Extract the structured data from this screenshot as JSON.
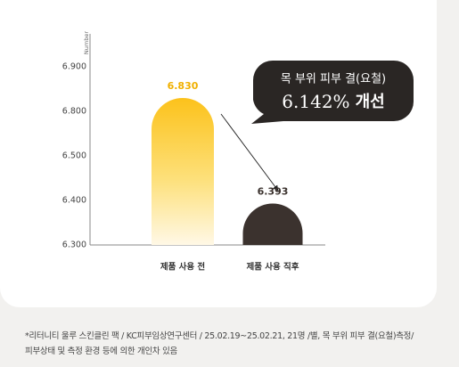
{
  "chart_data": {
    "type": "bar",
    "y_label": "Number",
    "categories": [
      "제품 사용 전",
      "제품 사용 직후"
    ],
    "values": [
      6.83,
      6.393
    ],
    "value_labels": [
      "6.830",
      "6.393"
    ],
    "colors": [
      "#fcc21b",
      "#3b322e"
    ],
    "ylim": [
      6.3,
      6.9
    ],
    "yticks": [
      {
        "value": 6.3,
        "label": "6.300"
      },
      {
        "value": 6.4,
        "label": "6.400"
      },
      {
        "value": 6.5,
        "label": "6.500"
      },
      {
        "value": 6.8,
        "label": "6.800"
      },
      {
        "value": 6.9,
        "label": "6.900"
      }
    ],
    "callout": {
      "title": "목 부위 피부 결(요철)",
      "value": "6.142%",
      "label": "개선"
    }
  },
  "footnote": [
    "*리터니티 울루 스킨클린 팩 / KC피부임상연구센터 / 25.02.19~25.02.21, 21명 /별, 목 부위 피부 결(요철)측정/",
    "피부상태 및 측정 환경 등에 의한 개인차 있음"
  ]
}
